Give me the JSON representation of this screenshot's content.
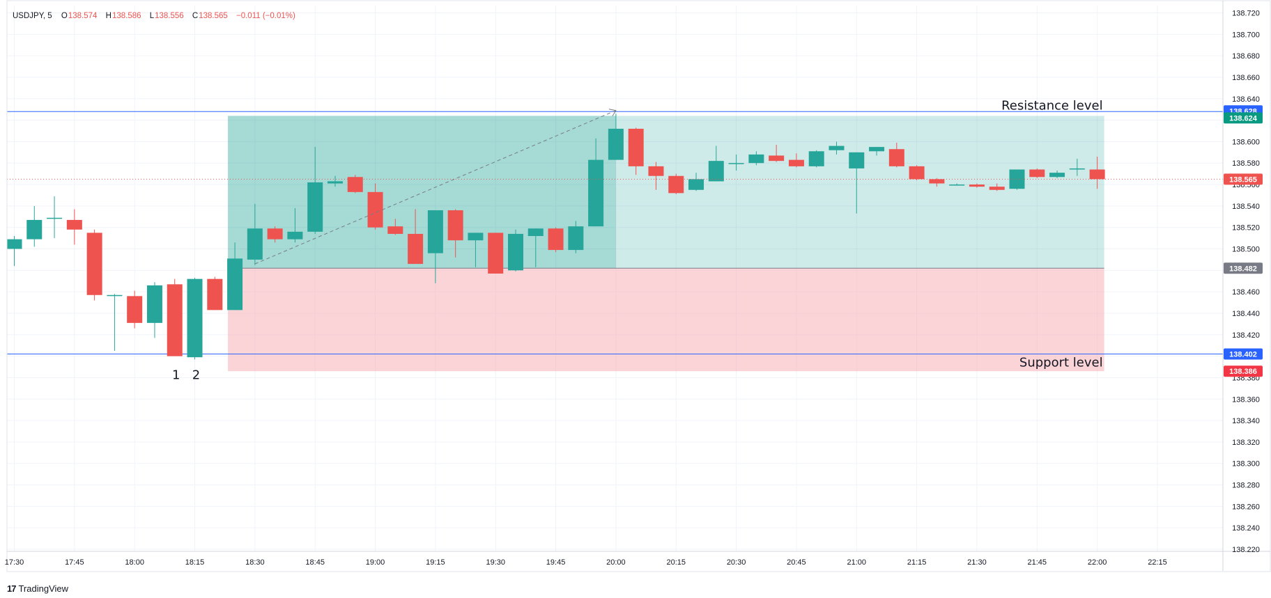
{
  "legend": {
    "symbol": "USDJPY, 5",
    "o_label": "O",
    "o_value": "138.574",
    "h_label": "H",
    "h_value": "138.586",
    "l_label": "L",
    "l_value": "138.556",
    "c_label": "C",
    "c_value": "138.565",
    "change": "−0.011 (−0.01%)"
  },
  "footer": {
    "logo": "17",
    "brand": "TradingView"
  },
  "colors": {
    "up": "#26a69a",
    "down": "#ef5350",
    "level_line": "#2962ff",
    "profit_zone": "#26a69a",
    "loss_zone": "#f7a9b1"
  },
  "chart_data": {
    "type": "candlestick",
    "symbol": "USDJPY",
    "interval": "5",
    "ylim": [
      138.215,
      138.725
    ],
    "y_ticks": [
      "138.720",
      "138.700",
      "138.680",
      "138.660",
      "138.640",
      "138.620",
      "138.600",
      "138.580",
      "138.560",
      "138.540",
      "138.520",
      "138.500",
      "138.480",
      "138.460",
      "138.440",
      "138.420",
      "138.400",
      "138.380",
      "138.360",
      "138.340",
      "138.320",
      "138.300",
      "138.280",
      "138.260",
      "138.240",
      "138.220"
    ],
    "x_ticks": [
      "17:30",
      "17:45",
      "18:00",
      "18:15",
      "18:30",
      "18:45",
      "19:00",
      "19:15",
      "19:30",
      "19:45",
      "20:00",
      "20:15",
      "20:30",
      "20:45",
      "21:00",
      "21:15",
      "21:30",
      "21:45",
      "22:00",
      "22:15"
    ],
    "x_start": "17:30",
    "bar_minutes": 5,
    "candles": [
      {
        "t": "17:30",
        "o": 138.5,
        "h": 138.512,
        "l": 138.484,
        "c": 138.509
      },
      {
        "t": "17:35",
        "o": 138.509,
        "h": 138.54,
        "l": 138.502,
        "c": 138.527
      },
      {
        "t": "17:40",
        "o": 138.529,
        "h": 138.549,
        "l": 138.51,
        "c": 138.529
      },
      {
        "t": "17:45",
        "o": 138.527,
        "h": 138.537,
        "l": 138.504,
        "c": 138.518
      },
      {
        "t": "17:50",
        "o": 138.515,
        "h": 138.518,
        "l": 138.452,
        "c": 138.457
      },
      {
        "t": "17:55",
        "o": 138.457,
        "h": 138.458,
        "l": 138.405,
        "c": 138.457
      },
      {
        "t": "18:00",
        "o": 138.456,
        "h": 138.461,
        "l": 138.426,
        "c": 138.431
      },
      {
        "t": "18:05",
        "o": 138.431,
        "h": 138.469,
        "l": 138.417,
        "c": 138.466
      },
      {
        "t": "18:10",
        "o": 138.467,
        "h": 138.472,
        "l": 138.4,
        "c": 138.4
      },
      {
        "t": "18:15",
        "o": 138.399,
        "h": 138.473,
        "l": 138.397,
        "c": 138.472
      },
      {
        "t": "18:20",
        "o": 138.472,
        "h": 138.474,
        "l": 138.443,
        "c": 138.443
      },
      {
        "t": "18:25",
        "o": 138.443,
        "h": 138.506,
        "l": 138.443,
        "c": 138.491
      },
      {
        "t": "18:30",
        "o": 138.49,
        "h": 138.542,
        "l": 138.485,
        "c": 138.519
      },
      {
        "t": "18:35",
        "o": 138.519,
        "h": 138.521,
        "l": 138.506,
        "c": 138.509
      },
      {
        "t": "18:40",
        "o": 138.509,
        "h": 138.538,
        "l": 138.506,
        "c": 138.516
      },
      {
        "t": "18:45",
        "o": 138.516,
        "h": 138.595,
        "l": 138.514,
        "c": 138.562
      },
      {
        "t": "18:50",
        "o": 138.561,
        "h": 138.568,
        "l": 138.558,
        "c": 138.563
      },
      {
        "t": "18:55",
        "o": 138.567,
        "h": 138.569,
        "l": 138.552,
        "c": 138.553
      },
      {
        "t": "19:00",
        "o": 138.553,
        "h": 138.561,
        "l": 138.518,
        "c": 138.52
      },
      {
        "t": "19:05",
        "o": 138.521,
        "h": 138.528,
        "l": 138.513,
        "c": 138.514
      },
      {
        "t": "19:10",
        "o": 138.514,
        "h": 138.537,
        "l": 138.486,
        "c": 138.486
      },
      {
        "t": "19:15",
        "o": 138.496,
        "h": 138.536,
        "l": 138.468,
        "c": 138.536
      },
      {
        "t": "19:20",
        "o": 138.536,
        "h": 138.537,
        "l": 138.492,
        "c": 138.508
      },
      {
        "t": "19:25",
        "o": 138.508,
        "h": 138.515,
        "l": 138.483,
        "c": 138.515
      },
      {
        "t": "19:30",
        "o": 138.515,
        "h": 138.515,
        "l": 138.477,
        "c": 138.477
      },
      {
        "t": "19:35",
        "o": 138.48,
        "h": 138.518,
        "l": 138.479,
        "c": 138.514
      },
      {
        "t": "19:40",
        "o": 138.512,
        "h": 138.519,
        "l": 138.483,
        "c": 138.519
      },
      {
        "t": "19:45",
        "o": 138.519,
        "h": 138.52,
        "l": 138.497,
        "c": 138.499
      },
      {
        "t": "19:50",
        "o": 138.499,
        "h": 138.526,
        "l": 138.496,
        "c": 138.521
      },
      {
        "t": "19:55",
        "o": 138.521,
        "h": 138.603,
        "l": 138.521,
        "c": 138.583
      },
      {
        "t": "20:00",
        "o": 138.583,
        "h": 138.626,
        "l": 138.583,
        "c": 138.612
      },
      {
        "t": "20:05",
        "o": 138.612,
        "h": 138.613,
        "l": 138.569,
        "c": 138.577
      },
      {
        "t": "20:10",
        "o": 138.577,
        "h": 138.581,
        "l": 138.555,
        "c": 138.568
      },
      {
        "t": "20:15",
        "o": 138.568,
        "h": 138.57,
        "l": 138.551,
        "c": 138.552
      },
      {
        "t": "20:20",
        "o": 138.555,
        "h": 138.571,
        "l": 138.554,
        "c": 138.565
      },
      {
        "t": "20:25",
        "o": 138.563,
        "h": 138.596,
        "l": 138.563,
        "c": 138.582
      },
      {
        "t": "20:30",
        "o": 138.58,
        "h": 138.588,
        "l": 138.573,
        "c": 138.58
      },
      {
        "t": "20:35",
        "o": 138.58,
        "h": 138.591,
        "l": 138.578,
        "c": 138.588
      },
      {
        "t": "20:40",
        "o": 138.587,
        "h": 138.597,
        "l": 138.581,
        "c": 138.582
      },
      {
        "t": "20:45",
        "o": 138.583,
        "h": 138.589,
        "l": 138.576,
        "c": 138.577
      },
      {
        "t": "20:50",
        "o": 138.577,
        "h": 138.592,
        "l": 138.576,
        "c": 138.591
      },
      {
        "t": "20:55",
        "o": 138.592,
        "h": 138.6,
        "l": 138.588,
        "c": 138.596
      },
      {
        "t": "21:00",
        "o": 138.575,
        "h": 138.59,
        "l": 138.533,
        "c": 138.59
      },
      {
        "t": "21:05",
        "o": 138.591,
        "h": 138.595,
        "l": 138.587,
        "c": 138.595
      },
      {
        "t": "21:10",
        "o": 138.593,
        "h": 138.599,
        "l": 138.576,
        "c": 138.577
      },
      {
        "t": "21:15",
        "o": 138.577,
        "h": 138.578,
        "l": 138.564,
        "c": 138.565
      },
      {
        "t": "21:20",
        "o": 138.565,
        "h": 138.566,
        "l": 138.558,
        "c": 138.561
      },
      {
        "t": "21:25",
        "o": 138.56,
        "h": 138.561,
        "l": 138.559,
        "c": 138.56
      },
      {
        "t": "21:30",
        "o": 138.56,
        "h": 138.561,
        "l": 138.557,
        "c": 138.558
      },
      {
        "t": "21:35",
        "o": 138.558,
        "h": 138.561,
        "l": 138.554,
        "c": 138.555
      },
      {
        "t": "21:40",
        "o": 138.556,
        "h": 138.574,
        "l": 138.555,
        "c": 138.574
      },
      {
        "t": "21:45",
        "o": 138.574,
        "h": 138.575,
        "l": 138.566,
        "c": 138.567
      },
      {
        "t": "21:50",
        "o": 138.567,
        "h": 138.573,
        "l": 138.566,
        "c": 138.571
      },
      {
        "t": "21:55",
        "o": 138.574,
        "h": 138.584,
        "l": 138.568,
        "c": 138.575
      },
      {
        "t": "22:00",
        "o": 138.574,
        "h": 138.586,
        "l": 138.556,
        "c": 138.565
      }
    ],
    "horizontal_levels": [
      {
        "price": 138.628,
        "label": "Resistance level",
        "tag": "138.628"
      },
      {
        "price": 138.402,
        "label": "Support level",
        "tag": "138.402"
      }
    ],
    "position": {
      "type": "long",
      "entry": 138.482,
      "target": 138.624,
      "stop": 138.386,
      "start_time": "18:25",
      "end_time": "22:00",
      "filled_until": "20:00",
      "tags": {
        "target": "138.624",
        "entry": "138.482",
        "stop": "138.386"
      }
    },
    "trend_arrow": {
      "from_time": "18:30",
      "from_price": 138.486,
      "to_time": "20:00",
      "to_price": 138.629
    },
    "current_price": {
      "price": 138.565,
      "tag": "138.565"
    },
    "candle_annotations": [
      {
        "text": "1",
        "time": "18:10"
      },
      {
        "text": "2",
        "time": "18:15"
      }
    ]
  }
}
